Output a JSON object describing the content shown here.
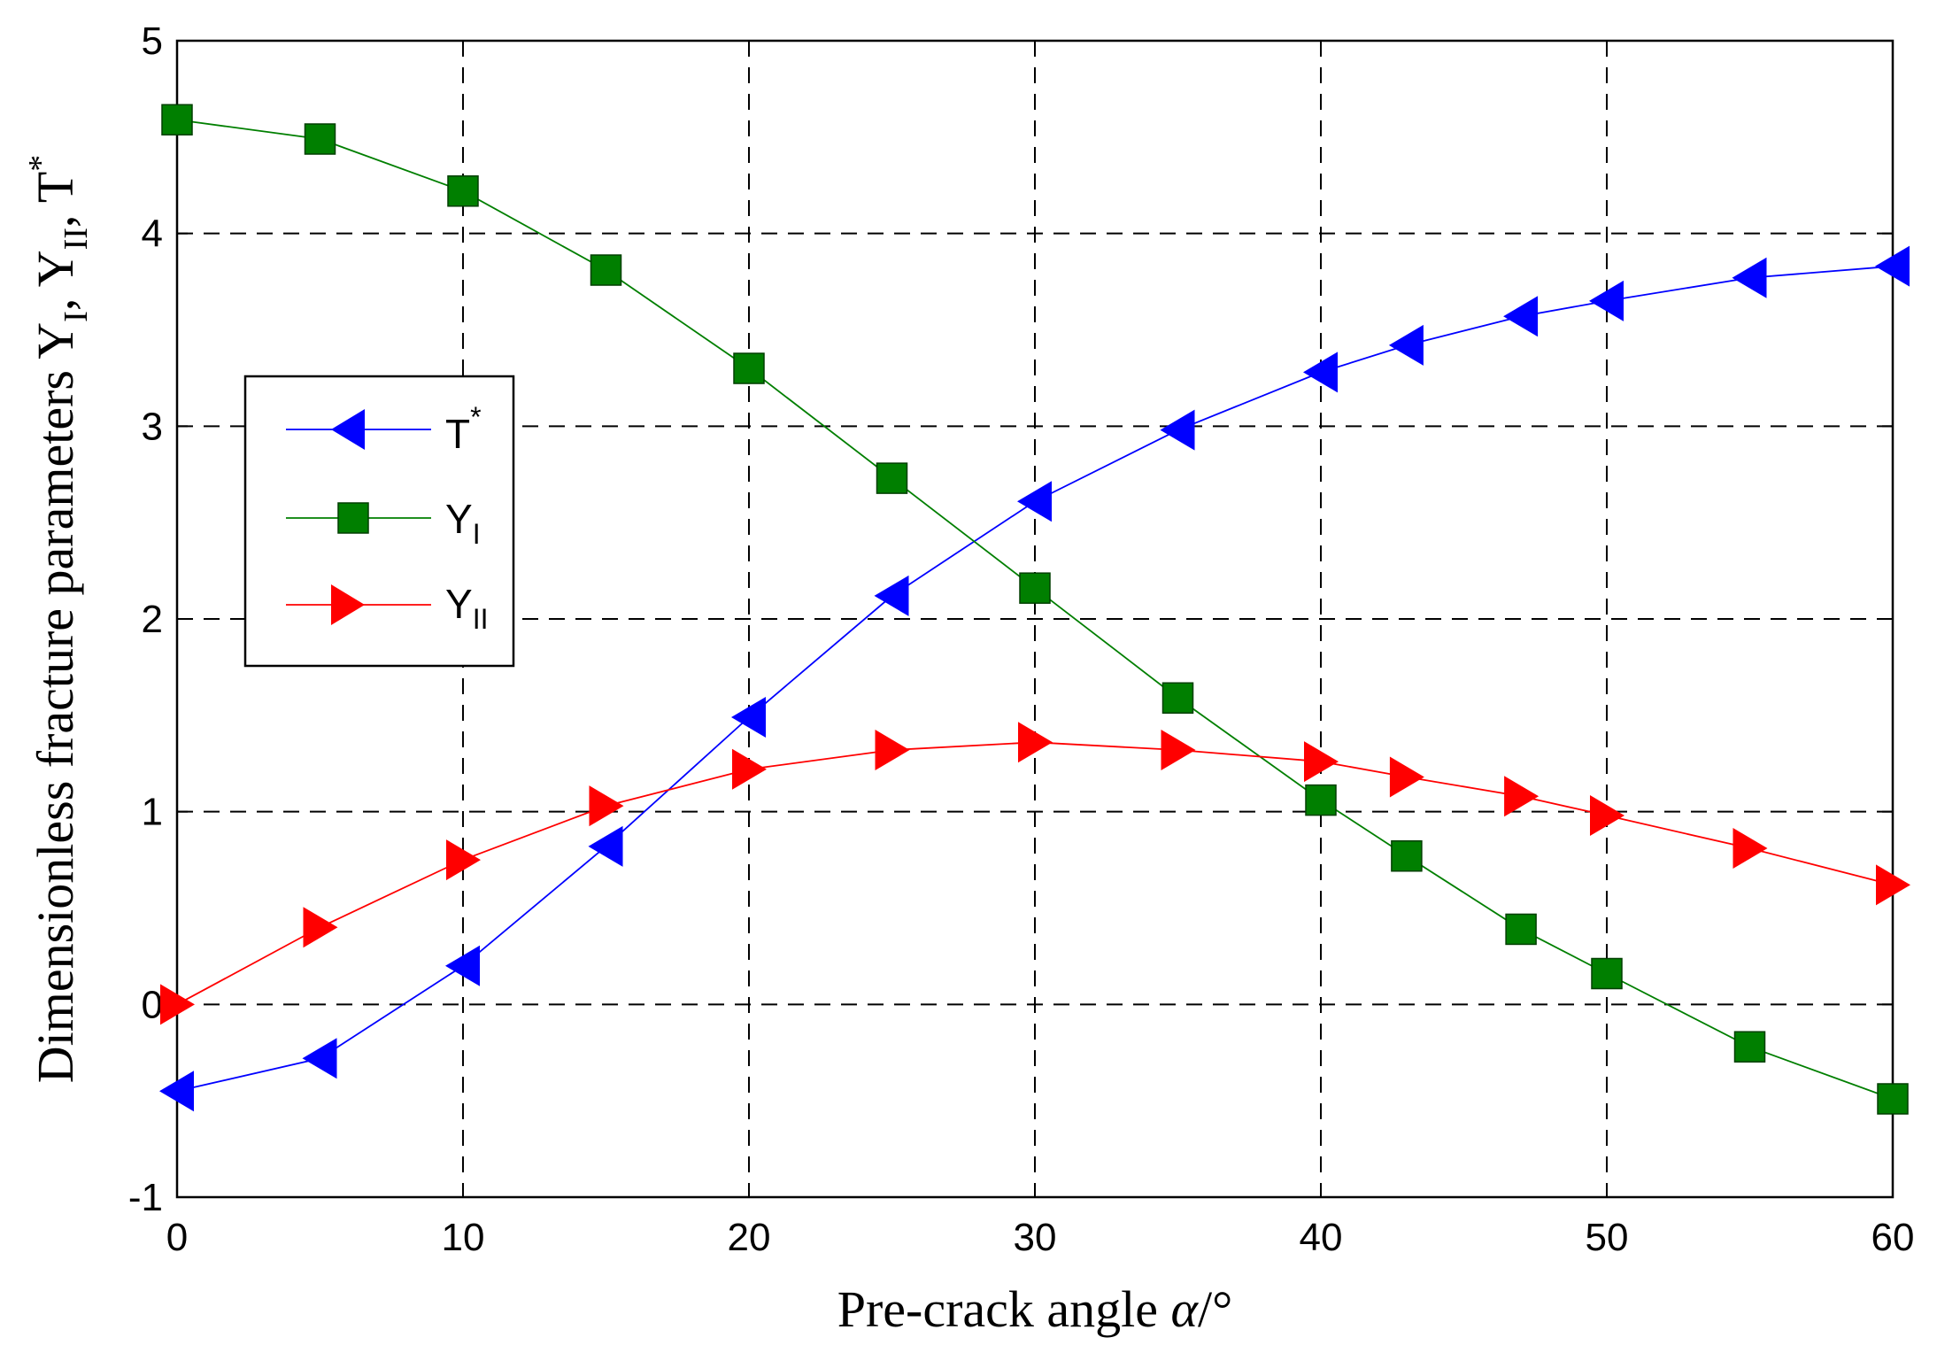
{
  "chart_data": {
    "type": "line",
    "title": "",
    "xlabel": "Pre-crack angle ",
    "xlabel_symbol": "α",
    "xlabel_unit": "/°",
    "ylabel": "Dimensionless fracture parameters Y",
    "ylabel_sub1": "I",
    "ylabel_sep1": ", Y",
    "ylabel_sub2": "II",
    "ylabel_sep2": ", T",
    "ylabel_sup": "*",
    "xlim": [
      0,
      60
    ],
    "ylim": [
      -1,
      5
    ],
    "xticks": [
      0,
      10,
      20,
      30,
      40,
      50,
      60
    ],
    "yticks": [
      -1,
      0,
      1,
      2,
      3,
      4,
      5
    ],
    "grid": true,
    "legend_position": "middle-left",
    "series": [
      {
        "name": "T",
        "name_sup": "*",
        "marker": "triangle-left",
        "color": "#0000ff",
        "x": [
          0,
          5,
          10,
          15,
          20,
          25,
          30,
          35,
          40,
          43,
          47,
          50,
          55,
          60
        ],
        "y": [
          -0.45,
          -0.28,
          0.2,
          0.82,
          1.49,
          2.12,
          2.61,
          2.98,
          3.28,
          3.42,
          3.57,
          3.65,
          3.77,
          3.83
        ]
      },
      {
        "name": "Y",
        "name_sub": "I",
        "marker": "square",
        "color": "#007f00",
        "x": [
          0,
          5,
          10,
          15,
          20,
          25,
          30,
          35,
          40,
          43,
          47,
          50,
          55,
          60
        ],
        "y": [
          4.59,
          4.49,
          4.22,
          3.81,
          3.3,
          2.73,
          2.16,
          1.59,
          1.06,
          0.77,
          0.39,
          0.16,
          -0.22,
          -0.49
        ]
      },
      {
        "name": "Y",
        "name_sub": "II",
        "marker": "triangle-right",
        "color": "#ff0000",
        "x": [
          0,
          5,
          10,
          15,
          20,
          25,
          30,
          35,
          40,
          43,
          47,
          50,
          55,
          60
        ],
        "y": [
          0.0,
          0.4,
          0.75,
          1.03,
          1.22,
          1.32,
          1.36,
          1.32,
          1.26,
          1.18,
          1.08,
          0.98,
          0.81,
          0.62
        ]
      }
    ]
  }
}
